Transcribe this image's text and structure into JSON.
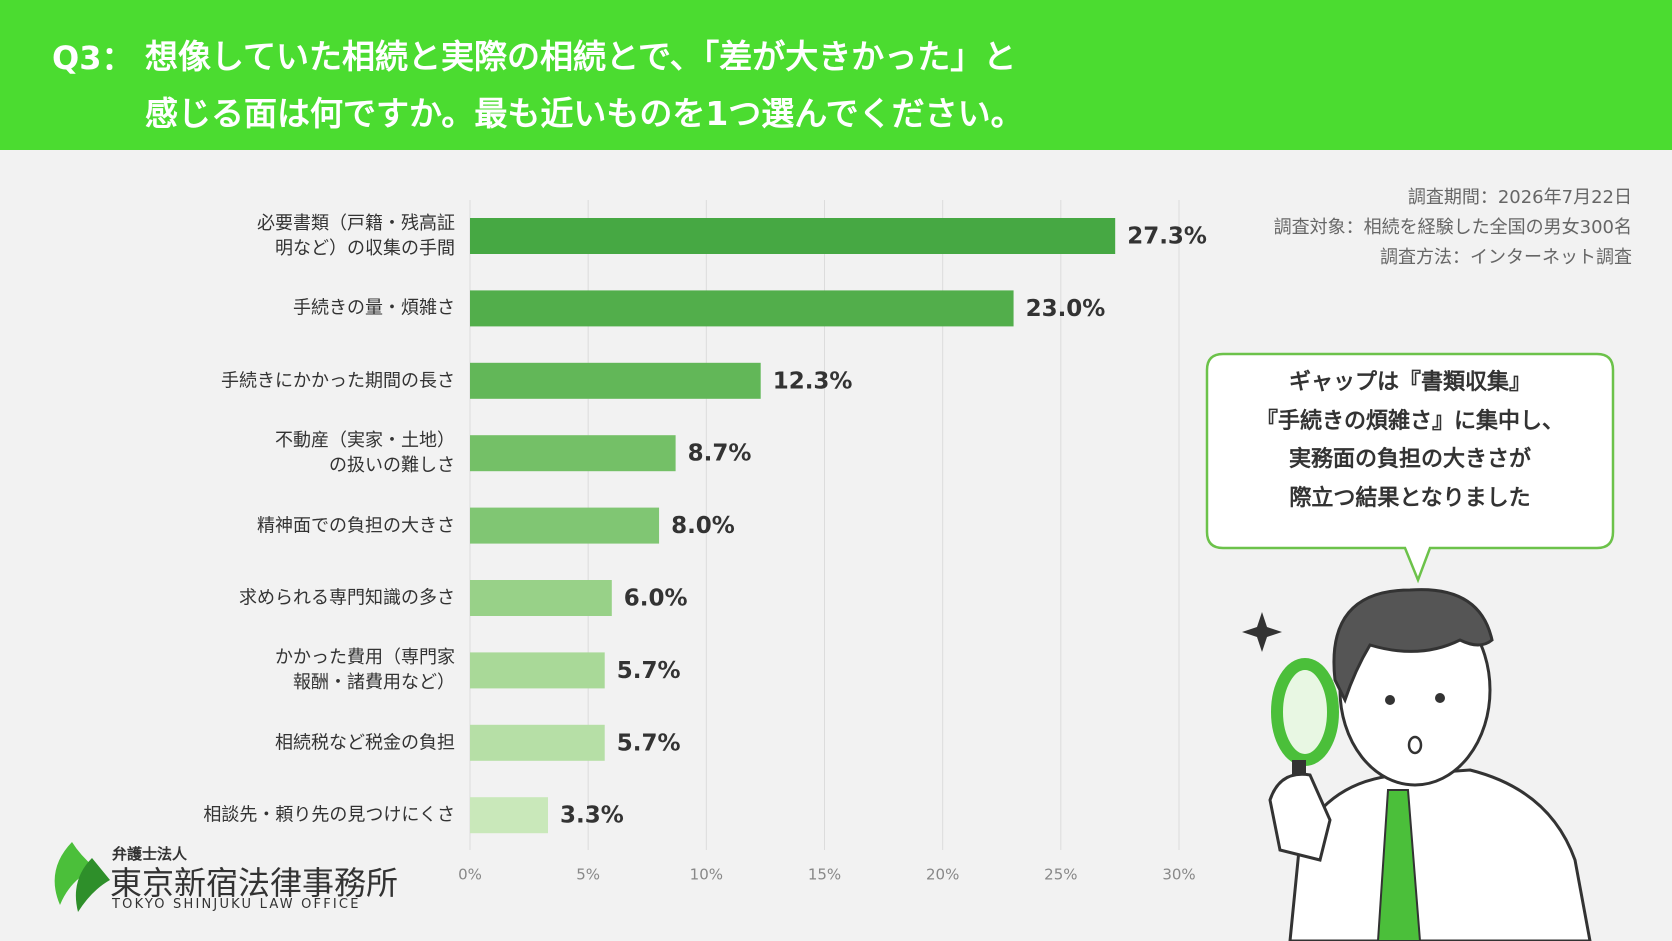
{
  "header": {
    "label": "Q3：",
    "title": "想像していた相続と実際の相続とで、「差が大きかった」と\n感じる面は何ですか。最も近いものを1つ選んでください。"
  },
  "survey": [
    "調査期間：2026年7月22日",
    "調査対象：相続を経験した全国の男女300名",
    "調査方法：インターネット調査"
  ],
  "callout": "ギャップは『書類収集』\n『手続きの煩雑さ』に集中し、\n実務面の負担の大きさが\n際立つ結果となりました",
  "logo": {
    "sub": "弁護士法人",
    "name": "東京新宿法律事務所",
    "english": "TOKYO SHINJUKU LAW OFFICE"
  },
  "chart_data": {
    "type": "bar",
    "orientation": "horizontal",
    "categories": [
      "必要書類（戸籍・残高証\n明など）の収集の手間",
      "手続きの量・煩雑さ",
      "手続きにかかった期間の長さ",
      "不動産（実家・土地）\nの扱いの難しさ",
      "精神面での負担の大きさ",
      "求められる専門知識の多さ",
      "かかった費用（専門家\n報酬・諸費用など）",
      "相続税など税金の負担",
      "相談先・頼り先の見つけにくさ"
    ],
    "values": [
      27.3,
      23.0,
      12.3,
      8.7,
      8.0,
      6.0,
      5.7,
      5.7,
      3.3
    ],
    "value_labels": [
      "27.3%",
      "23.0%",
      "12.3%",
      "8.7%",
      "8.0%",
      "6.0%",
      "5.7%",
      "5.7%",
      "3.3%"
    ],
    "colors": [
      "#46a843",
      "#52ae4b",
      "#62b758",
      "#74c067",
      "#80c673",
      "#98d188",
      "#a9d998",
      "#b6dfa6",
      "#c9e8ba"
    ],
    "xlim": [
      0,
      30
    ],
    "xticks": [
      {
        "value": 0,
        "label": "0%"
      },
      {
        "value": 5,
        "label": "5%"
      },
      {
        "value": 10,
        "label": "10%"
      },
      {
        "value": 15,
        "label": "15%"
      },
      {
        "value": 20,
        "label": "20%"
      },
      {
        "value": 25,
        "label": "25%"
      },
      {
        "value": 30,
        "label": "30%"
      }
    ],
    "grid": true
  }
}
